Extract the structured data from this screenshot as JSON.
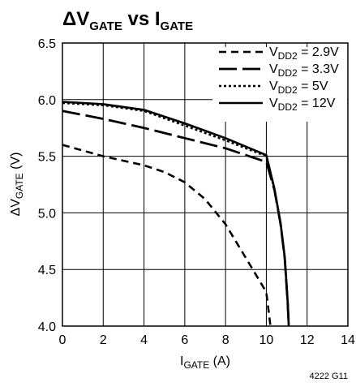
{
  "chart_data": {
    "type": "line",
    "title": {
      "prefix": "ΔV",
      "prefix_sub": "GATE",
      "middle": " vs I",
      "middle_sub": "GATE"
    },
    "xlabel": {
      "main": "I",
      "sub": "GATE",
      "suffix": " (A)"
    },
    "ylabel": {
      "main": "ΔV",
      "sub": "GATE",
      "suffix": " (V)"
    },
    "xlim": [
      0,
      14
    ],
    "ylim": [
      4.0,
      6.5
    ],
    "x_ticks": [
      0,
      2,
      4,
      6,
      8,
      10,
      12,
      14
    ],
    "y_ticks": [
      4.0,
      4.5,
      5.0,
      5.5,
      6.0,
      6.5
    ],
    "x_tick_labels": [
      "0",
      "2",
      "4",
      "6",
      "8",
      "10",
      "12",
      "14"
    ],
    "y_tick_labels": [
      "4.0",
      "4.5",
      "5.0",
      "5.5",
      "6.0",
      "6.5"
    ],
    "grid": true,
    "legend_placement": "top-right",
    "series": [
      {
        "key": "v29",
        "label_main": "V",
        "label_sub": "DD2",
        "label_suffix": " = 2.9V",
        "style": "dashed",
        "x": [
          0,
          2,
          4,
          5,
          6,
          7,
          8,
          9,
          9.5,
          10,
          10.2
        ],
        "y": [
          5.6,
          5.5,
          5.42,
          5.36,
          5.27,
          5.12,
          4.9,
          4.6,
          4.45,
          4.3,
          4.0
        ]
      },
      {
        "key": "v33",
        "label_main": "V",
        "label_sub": "DD2",
        "label_suffix": " = 3.3V",
        "style": "long-dashed",
        "x": [
          0,
          2,
          4,
          6,
          8,
          10,
          10.4,
          10.7,
          10.9,
          11.05,
          11.1
        ],
        "y": [
          5.9,
          5.83,
          5.75,
          5.66,
          5.57,
          5.45,
          5.2,
          4.9,
          4.6,
          4.2,
          4.0
        ]
      },
      {
        "key": "v5",
        "label_main": "V",
        "label_sub": "DD2",
        "label_suffix": " = 5V",
        "style": "dotted",
        "x": [
          0,
          2,
          4,
          6,
          8,
          10,
          10.4,
          10.7,
          10.9,
          11.05,
          11.1
        ],
        "y": [
          5.97,
          5.95,
          5.9,
          5.77,
          5.64,
          5.5,
          5.2,
          4.9,
          4.6,
          4.2,
          4.0
        ]
      },
      {
        "key": "v12",
        "label_main": "V",
        "label_sub": "DD2",
        "label_suffix": " = 12V",
        "style": "solid",
        "x": [
          0,
          2,
          4,
          6,
          8,
          10,
          10.4,
          10.7,
          10.9,
          11.05,
          11.1
        ],
        "y": [
          5.98,
          5.96,
          5.91,
          5.79,
          5.66,
          5.51,
          5.21,
          4.91,
          4.61,
          4.21,
          4.0
        ]
      }
    ],
    "figure_id": "4222 G11",
    "line_color": "#000000",
    "grid_color": "#000000",
    "background_color": "#ffffff"
  }
}
